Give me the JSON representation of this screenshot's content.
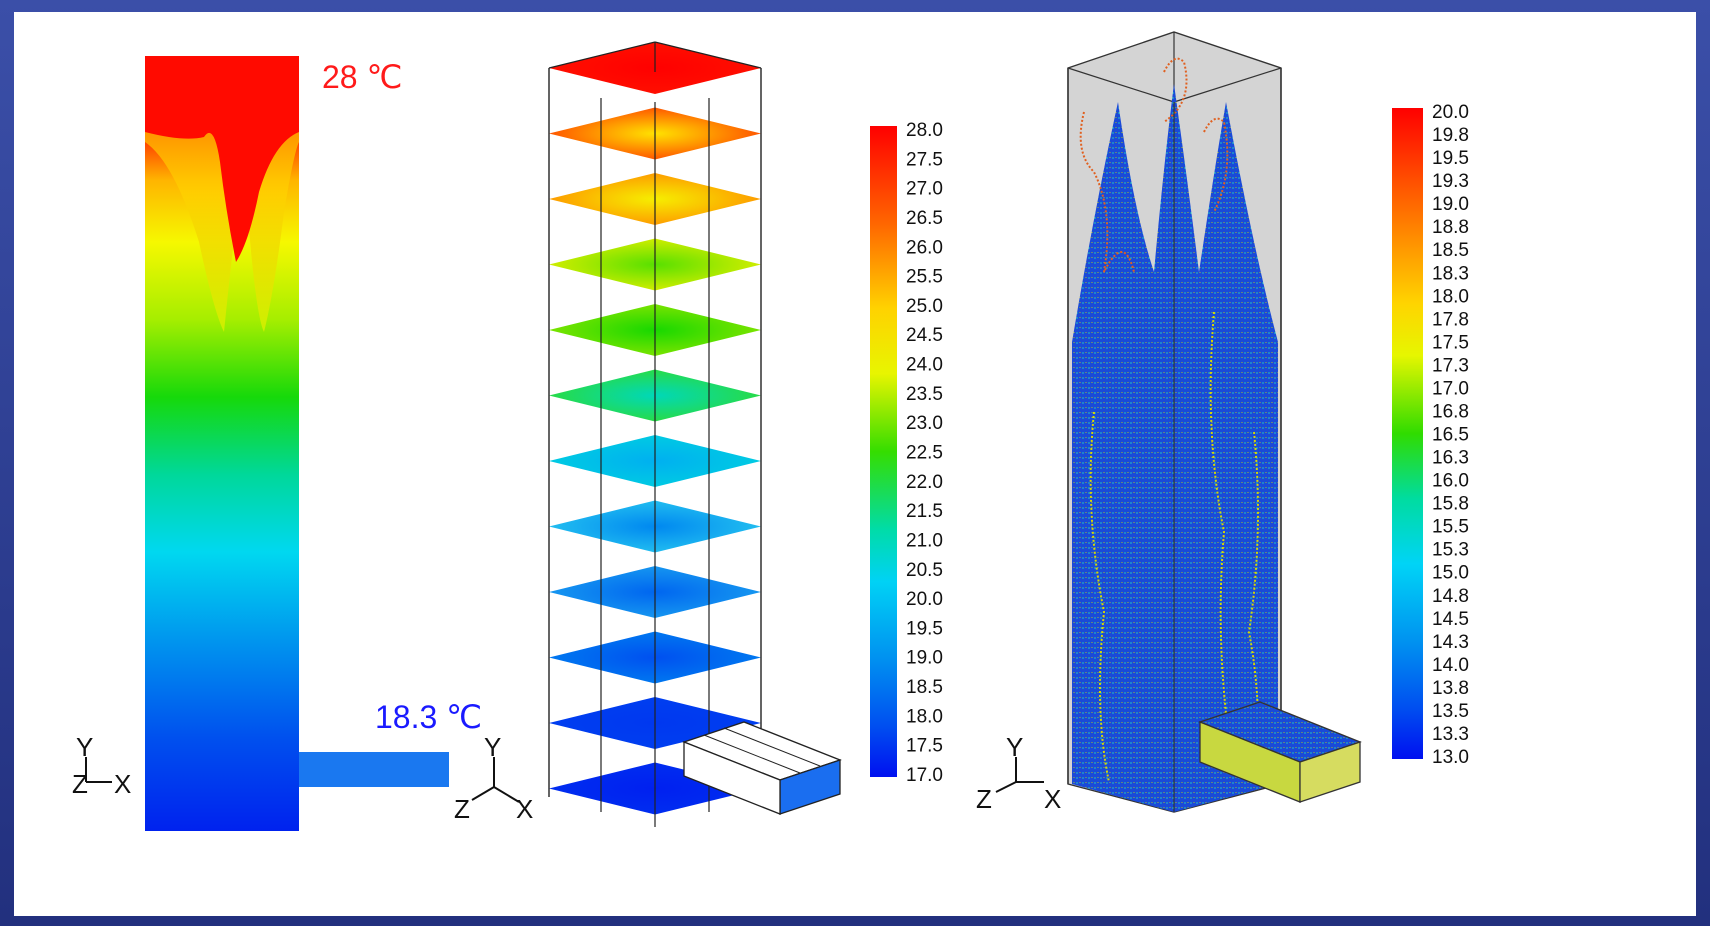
{
  "labels": {
    "hot_temp": "28 ℃",
    "cold_temp": "18.3 ℃"
  },
  "axes": {
    "y": "Y",
    "z": "Z",
    "x": "X"
  },
  "legend_left": {
    "min": 17.0,
    "max": 28.0,
    "ticks": [
      "28.0",
      "27.5",
      "27.0",
      "26.5",
      "26.0",
      "25.5",
      "25.0",
      "24.5",
      "24.0",
      "23.5",
      "23.0",
      "22.5",
      "22.0",
      "21.5",
      "21.0",
      "20.5",
      "20.0",
      "19.5",
      "19.0",
      "18.5",
      "18.0",
      "17.5",
      "17.0"
    ]
  },
  "legend_right": {
    "min": 13.0,
    "max": 20.0,
    "ticks": [
      "20.0",
      "19.8",
      "19.5",
      "19.3",
      "19.0",
      "18.8",
      "18.5",
      "18.3",
      "18.0",
      "17.8",
      "17.5",
      "17.3",
      "17.0",
      "16.8",
      "16.5",
      "16.3",
      "16.0",
      "15.8",
      "15.5",
      "15.3",
      "15.0",
      "14.8",
      "14.5",
      "14.3",
      "14.0",
      "13.8",
      "13.5",
      "13.3",
      "13.0"
    ]
  },
  "colors": {
    "frame": "#2a3a8a",
    "hot": "#ff0000",
    "cold": "#0000ff"
  }
}
